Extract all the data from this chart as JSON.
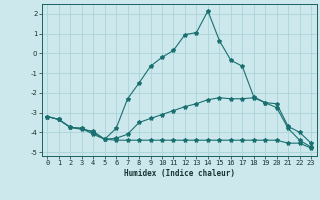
{
  "xlabel": "Humidex (Indice chaleur)",
  "bg_color": "#cce8ec",
  "grid_color": "#aad4da",
  "line_color": "#1a7070",
  "xlim": [
    -0.5,
    23.5
  ],
  "ylim": [
    -5.2,
    2.5
  ],
  "yticks": [
    -5,
    -4,
    -3,
    -2,
    -1,
    0,
    1,
    2
  ],
  "xticks": [
    0,
    1,
    2,
    3,
    4,
    5,
    6,
    7,
    8,
    9,
    10,
    11,
    12,
    13,
    14,
    15,
    16,
    17,
    18,
    19,
    20,
    21,
    22,
    23
  ],
  "line1_x": [
    0,
    1,
    2,
    3,
    4,
    5,
    6,
    7,
    8,
    9,
    10,
    11,
    12,
    13,
    14,
    15,
    16,
    17,
    18,
    19,
    20,
    21,
    22,
    23
  ],
  "line1_y": [
    -3.2,
    -3.35,
    -3.75,
    -3.8,
    -4.1,
    -4.35,
    -4.4,
    -4.4,
    -4.4,
    -4.4,
    -4.4,
    -4.4,
    -4.4,
    -4.4,
    -4.4,
    -4.4,
    -4.4,
    -4.4,
    -4.4,
    -4.4,
    -4.4,
    -4.55,
    -4.55,
    -4.8
  ],
  "line2_x": [
    0,
    1,
    2,
    3,
    4,
    5,
    6,
    7,
    8,
    9,
    10,
    11,
    12,
    13,
    14,
    15,
    16,
    17,
    18,
    19,
    20,
    21,
    22,
    23
  ],
  "line2_y": [
    -3.2,
    -3.35,
    -3.75,
    -3.8,
    -4.0,
    -4.35,
    -4.3,
    -4.1,
    -3.5,
    -3.3,
    -3.1,
    -2.9,
    -2.7,
    -2.55,
    -2.35,
    -2.25,
    -2.3,
    -2.3,
    -2.25,
    -2.5,
    -2.55,
    -3.7,
    -4.0,
    -4.55
  ],
  "line3_x": [
    0,
    1,
    2,
    3,
    4,
    5,
    6,
    7,
    8,
    9,
    10,
    11,
    12,
    13,
    14,
    15,
    16,
    17,
    18,
    19,
    20,
    21,
    22,
    23
  ],
  "line3_y": [
    -3.2,
    -3.35,
    -3.75,
    -3.85,
    -3.95,
    -4.35,
    -3.8,
    -2.3,
    -1.5,
    -0.65,
    -0.2,
    0.15,
    0.95,
    1.05,
    2.15,
    0.65,
    -0.35,
    -0.65,
    -2.2,
    -2.5,
    -2.75,
    -3.8,
    -4.4,
    -4.75
  ]
}
